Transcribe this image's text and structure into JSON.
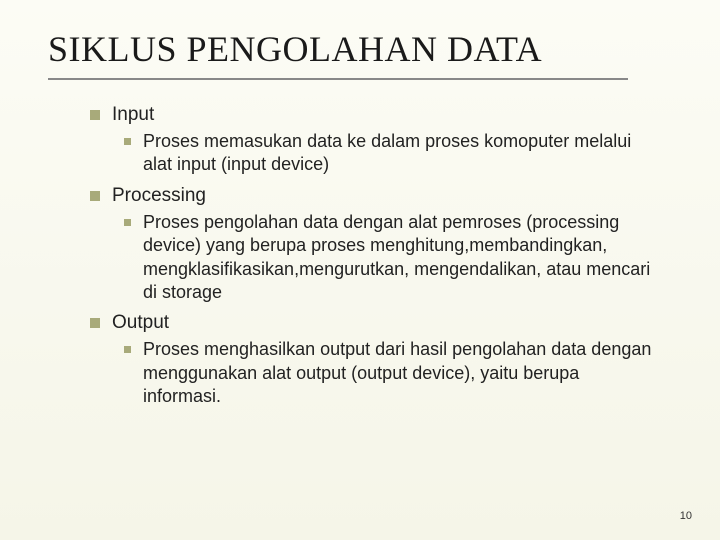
{
  "title": "SIKLUS PENGOLAHAN DATA",
  "styling": {
    "background_gradient_start": "#fcfcf5",
    "background_gradient_end": "#f5f5e8",
    "title_font": "Times New Roman",
    "title_fontsize": 36,
    "title_color": "#1a1a1a",
    "underline_color": "#888",
    "bullet_color": "#a8aa7a",
    "body_font": "Arial",
    "level1_fontsize": 19,
    "level2_fontsize": 18,
    "text_color": "#222",
    "page_number_fontsize": 11,
    "slide_width": 720,
    "slide_height": 540
  },
  "items": [
    {
      "label": "Input",
      "children": [
        "Proses memasukan data ke dalam proses komoputer melalui alat input (input device)"
      ]
    },
    {
      "label": "Processing",
      "children": [
        "Proses pengolahan data dengan alat pemroses (processing device) yang berupa proses menghitung,membandingkan, mengklasifikasikan,mengurutkan, mengendalikan, atau mencari di storage"
      ]
    },
    {
      "label": "Output",
      "children": [
        "Proses menghasilkan output dari hasil pengolahan data dengan menggunakan alat output (output device), yaitu berupa informasi."
      ]
    }
  ],
  "page_number": "10"
}
